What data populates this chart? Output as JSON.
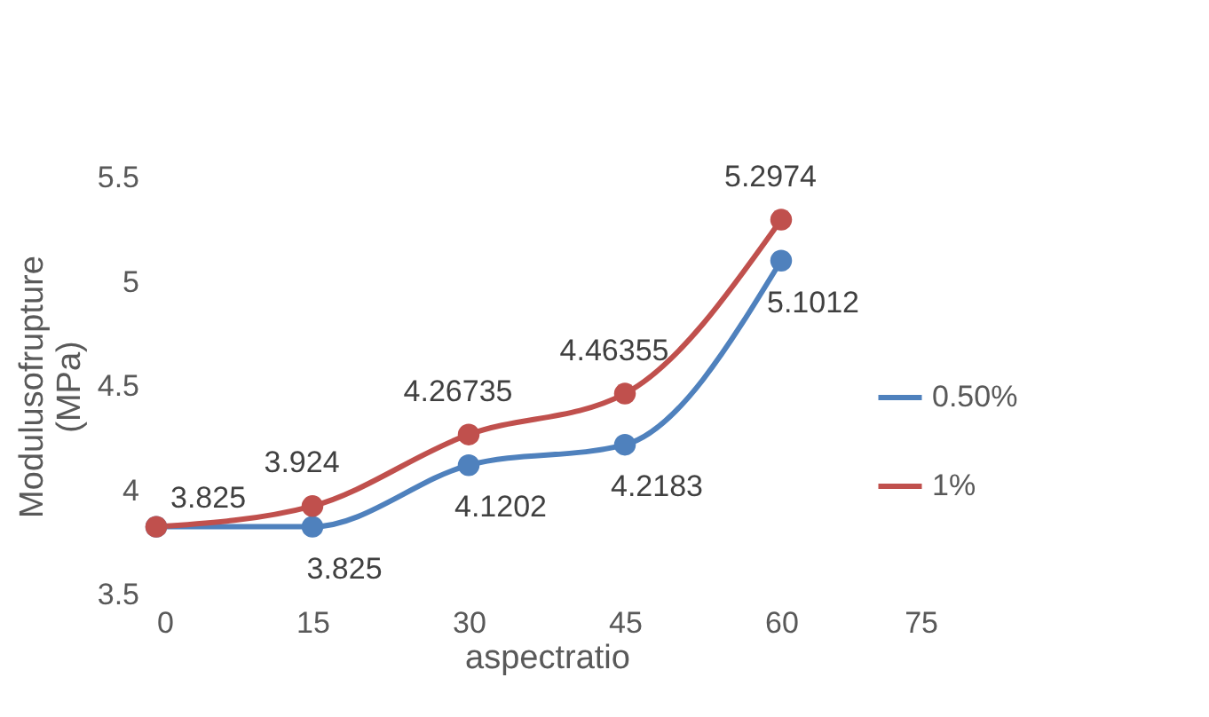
{
  "chart_data": {
    "type": "line",
    "xlabel": "aspectratio",
    "ylabel": "Modulusofrupture (MPa)",
    "x": [
      0,
      15,
      30,
      45,
      60
    ],
    "series": [
      {
        "name": "0.50%",
        "color": "#4f81bd",
        "values": [
          3.825,
          3.825,
          4.1202,
          4.2183,
          5.1012
        ],
        "value_labels": [
          null,
          "3.825",
          "4.1202",
          "4.2183",
          "5.1012"
        ]
      },
      {
        "name": "1%",
        "color": "#c0504d",
        "values": [
          3.825,
          3.924,
          4.26735,
          4.46355,
          5.2974
        ],
        "value_labels": [
          "3.825",
          "3.924",
          "4.26735",
          "4.46355",
          "5.2974"
        ]
      }
    ],
    "xlim": [
      0,
      75
    ],
    "xticks": [
      0,
      15,
      30,
      45,
      60,
      75
    ],
    "ylim": [
      3.5,
      5.5
    ],
    "yticks": [
      3.5,
      4,
      4.5,
      5,
      5.5
    ],
    "grid": false,
    "legend": "right",
    "marker": "circle",
    "line_style": "solid"
  }
}
